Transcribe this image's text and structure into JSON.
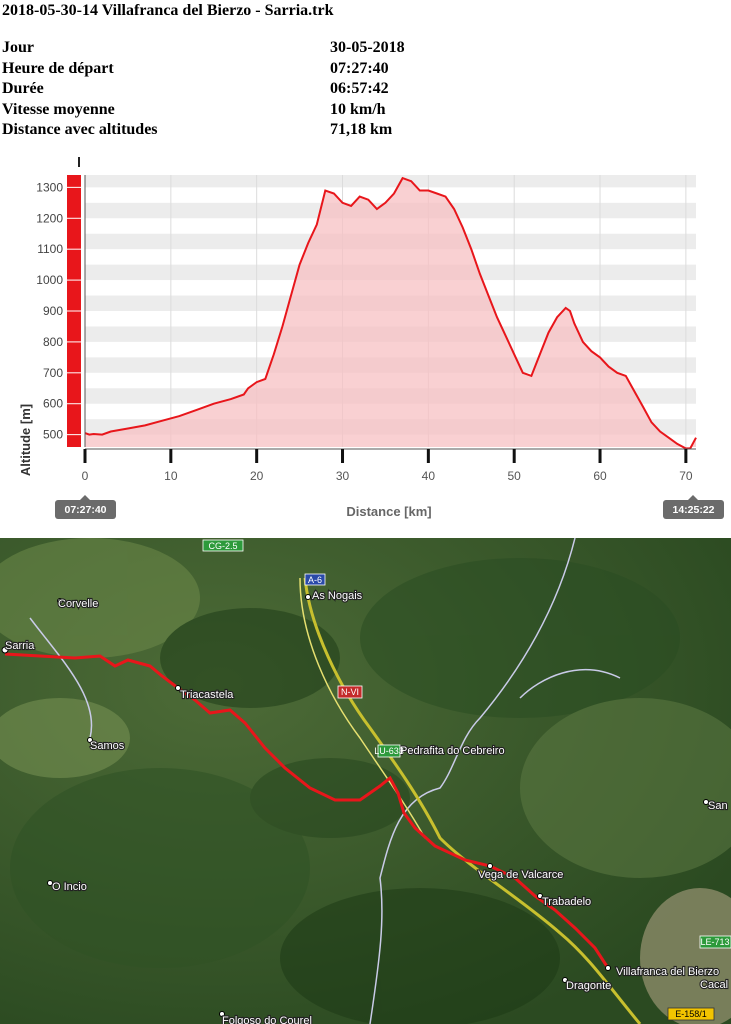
{
  "document": {
    "title": "2018-05-30-14 Villafranca del Bierzo - Sarria.trk"
  },
  "stats": [
    {
      "label": "Jour",
      "value": "30-05-2018"
    },
    {
      "label": "Heure de départ",
      "value": "07:27:40"
    },
    {
      "label": "Durée",
      "value": "06:57:42"
    },
    {
      "label": "Vitesse moyenne",
      "value": "10 km/h"
    },
    {
      "label": "Distance avec altitudes",
      "value": "71,18 km"
    }
  ],
  "chart_data": {
    "type": "area",
    "title": "",
    "xlabel": "Distance [km]",
    "ylabel": "Altitude [m]",
    "xlim": [
      0,
      71.18
    ],
    "ylim": [
      460,
      1340
    ],
    "x_ticks": [
      0,
      10,
      20,
      30,
      40,
      50,
      60,
      70
    ],
    "y_ticks": [
      500,
      600,
      700,
      800,
      900,
      1000,
      1100,
      1200,
      1300
    ],
    "start_time": "07:27:40",
    "end_time": "14:25:22",
    "grid": true,
    "colors": {
      "line": "#e8161b",
      "fill": "#f7c0c3",
      "axis_bar": "#e8161b"
    },
    "x": [
      0,
      0.5,
      1,
      2,
      3,
      4,
      5,
      7,
      9,
      11,
      13,
      15,
      17,
      18.5,
      19,
      20,
      21,
      22,
      23,
      24,
      25,
      26,
      27,
      28,
      29,
      30,
      31,
      32,
      33,
      34,
      35,
      36,
      37,
      38,
      39,
      40,
      41,
      42,
      43,
      44,
      45,
      46,
      47,
      48,
      49,
      50,
      51,
      52,
      53,
      54,
      55,
      56,
      56.5,
      57,
      58,
      59,
      60,
      61,
      62,
      63,
      64,
      65,
      66,
      67,
      68,
      69,
      70,
      70.5,
      71.18
    ],
    "y": [
      505,
      500,
      502,
      500,
      510,
      515,
      520,
      530,
      545,
      560,
      580,
      600,
      615,
      630,
      650,
      670,
      680,
      760,
      850,
      950,
      1050,
      1120,
      1180,
      1290,
      1280,
      1250,
      1240,
      1270,
      1260,
      1230,
      1250,
      1280,
      1330,
      1320,
      1290,
      1290,
      1280,
      1270,
      1230,
      1170,
      1100,
      1020,
      950,
      880,
      820,
      760,
      700,
      690,
      760,
      830,
      880,
      910,
      900,
      860,
      800,
      770,
      750,
      720,
      700,
      690,
      640,
      590,
      540,
      510,
      490,
      470,
      455,
      455,
      490
    ]
  },
  "map": {
    "places": [
      {
        "name": "Corvelle"
      },
      {
        "name": "Sarria"
      },
      {
        "name": "Triacastela"
      },
      {
        "name": "Samos"
      },
      {
        "name": "As Nogais"
      },
      {
        "name": "Pedrafita do Cebreiro"
      },
      {
        "name": "Vega de Valcarce"
      },
      {
        "name": "Trabadelo"
      },
      {
        "name": "O Incio"
      },
      {
        "name": "Villafranca del Bierzo"
      },
      {
        "name": "Dragonte"
      },
      {
        "name": "Folgoso do Courel"
      },
      {
        "name": "San"
      },
      {
        "name": "Cacal"
      }
    ],
    "roads": [
      "A-6",
      "N-VI",
      "LU-633",
      "LE-713",
      "E-158/1",
      "CG-2.5"
    ]
  }
}
